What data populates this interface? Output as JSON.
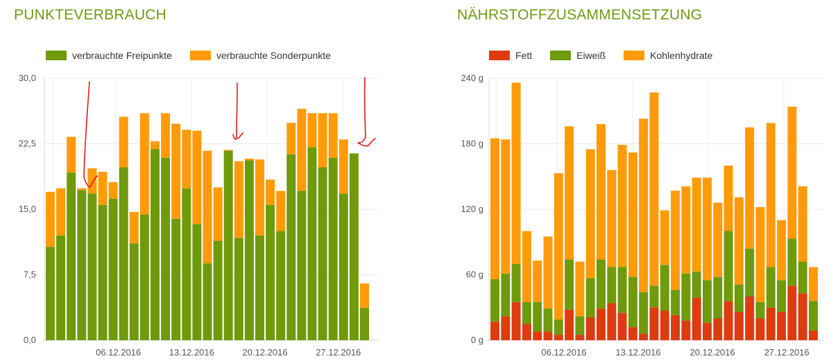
{
  "chart_data": [
    {
      "type": "bar",
      "stacked": true,
      "title": "PUNKTEVERBRAUCH",
      "legend_position": "top-left",
      "ylim": [
        0,
        30
      ],
      "yticks": [
        "0,0",
        "7,5",
        "15,0",
        "22,5",
        "30,0"
      ],
      "xticks": [
        {
          "index": 7,
          "label": "06.12.2016"
        },
        {
          "index": 14,
          "label": "13.12.2016"
        },
        {
          "index": 21,
          "label": "20.12.2016"
        },
        {
          "index": 28,
          "label": "27.12.2016"
        }
      ],
      "series": [
        {
          "name": "verbrauchte Freipunkte",
          "color": "#6e9a0c",
          "values": [
            10.7,
            12.0,
            19.2,
            17.2,
            16.8,
            15.5,
            16.2,
            19.8,
            11.1,
            14.4,
            21.9,
            20.9,
            13.9,
            17.4,
            13.3,
            8.8,
            11.4,
            21.7,
            11.7,
            20.6,
            12.0,
            15.5,
            12.5,
            21.3,
            17.1,
            22.1,
            19.8,
            20.9,
            16.8,
            21.4,
            3.7
          ]
        },
        {
          "name": "verbrauchte Sonderpunkte",
          "color": "#ff9b0a",
          "values": [
            6.3,
            5.4,
            4.1,
            0.2,
            2.9,
            3.8,
            1.9,
            5.8,
            3.6,
            11.6,
            0.9,
            5.1,
            10.9,
            6.7,
            10.7,
            12.9,
            6.1,
            0.1,
            8.8,
            0.2,
            8.7,
            2.9,
            4.6,
            3.6,
            9.4,
            3.9,
            6.2,
            5.1,
            6.2,
            0.0,
            2.8
          ]
        }
      ]
    },
    {
      "type": "bar",
      "stacked": true,
      "title": "NÄHRSTOFFZUSAMMENSETZUNG",
      "legend_position": "top-left",
      "ylim": [
        0,
        240
      ],
      "yticks": [
        "0 g",
        "60 g",
        "120 g",
        "180 g",
        "240 g"
      ],
      "xticks": [
        {
          "index": 7,
          "label": "06.12.2016"
        },
        {
          "index": 14,
          "label": "13.12.2016"
        },
        {
          "index": 21,
          "label": "20.12.2016"
        },
        {
          "index": 28,
          "label": "27.12.2016"
        }
      ],
      "series": [
        {
          "name": "Fett",
          "color": "#dd3c0f",
          "values": [
            17,
            22,
            35,
            15,
            8,
            8,
            5,
            28,
            5,
            21,
            29,
            34,
            25,
            12,
            6,
            30,
            27,
            23,
            18,
            39,
            16,
            20,
            36,
            26,
            40,
            20,
            30,
            26,
            50,
            43,
            9
          ]
        },
        {
          "name": "Eiweiß",
          "color": "#6e9a0c",
          "values": [
            39,
            39,
            35,
            20,
            27,
            21,
            14,
            46,
            17,
            36,
            45,
            33,
            42,
            46,
            38,
            20,
            42,
            23,
            43,
            24,
            39,
            38,
            64,
            25,
            44,
            15,
            37,
            29,
            43,
            29,
            27
          ]
        },
        {
          "name": "Kohlenhydrate",
          "color": "#ff9b0a",
          "values": [
            129,
            123,
            166,
            65,
            38,
            66,
            134,
            122,
            50,
            118,
            124,
            89,
            112,
            114,
            159,
            177,
            50,
            91,
            80,
            86,
            94,
            68,
            60,
            80,
            111,
            87,
            132,
            55,
            121,
            69,
            31
          ]
        }
      ]
    }
  ],
  "annotations": [
    {
      "type": "hand-drawn-arrow",
      "color": "#e01919"
    },
    {
      "type": "hand-drawn-arrow",
      "color": "#e01919"
    },
    {
      "type": "hand-drawn-arrow",
      "color": "#e01919"
    }
  ]
}
